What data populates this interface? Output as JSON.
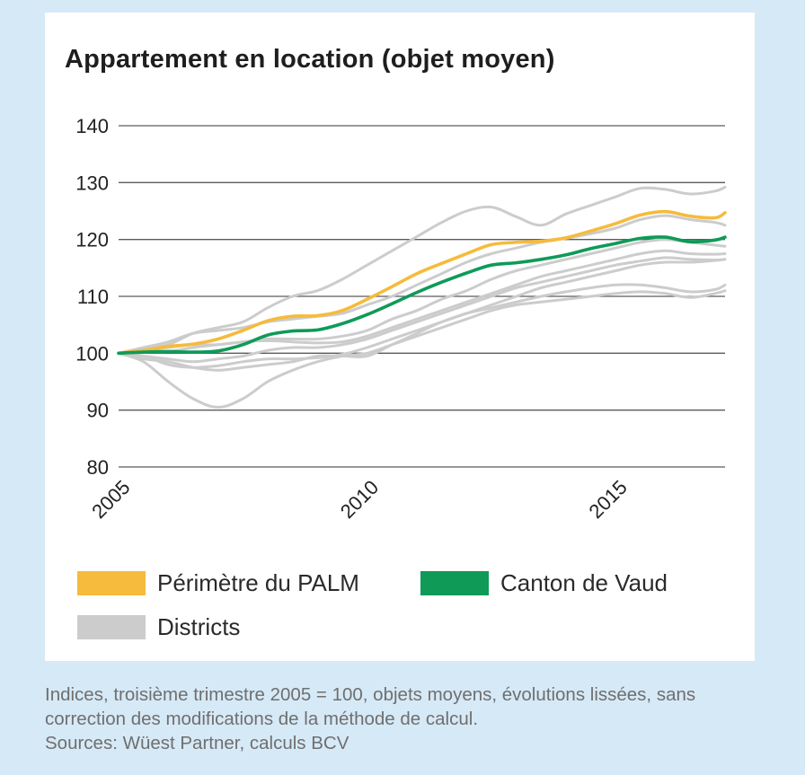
{
  "chart_data": {
    "type": "line",
    "title": "Appartement en location (objet moyen)",
    "xlabel": "",
    "ylabel": "",
    "xlim": [
      2005,
      2017.2
    ],
    "ylim": [
      80,
      140
    ],
    "yticks": [
      80,
      90,
      100,
      110,
      120,
      130,
      140
    ],
    "xticks": [
      2005,
      2010,
      2015
    ],
    "grid": "horizontal",
    "x": [
      2005.0,
      2005.5,
      2006.0,
      2006.5,
      2007.0,
      2007.5,
      2008.0,
      2008.5,
      2009.0,
      2009.5,
      2010.0,
      2010.5,
      2011.0,
      2011.5,
      2012.0,
      2012.5,
      2013.0,
      2013.5,
      2014.0,
      2014.5,
      2015.0,
      2015.5,
      2016.0,
      2016.5,
      2017.0,
      2017.2
    ],
    "series": [
      {
        "name": "Districts",
        "color": "#cccccc",
        "group": "districts",
        "values": [
          100,
          100.8,
          101.5,
          103.5,
          104.5,
          105.5,
          108,
          110,
          111,
          113,
          115.5,
          118,
          120.5,
          123,
          125,
          125.7,
          124,
          122.5,
          124.5,
          126,
          127.5,
          129,
          128.8,
          128,
          128.5,
          129.2
        ]
      },
      {
        "name": "Districts",
        "color": "#cccccc",
        "group": "districts",
        "values": [
          100,
          101,
          102,
          103.5,
          104,
          104.5,
          105.5,
          106,
          106.5,
          107,
          108.5,
          110,
          112,
          114,
          116,
          117.5,
          118.5,
          119.5,
          120.2,
          121,
          122,
          123.5,
          124.2,
          123.5,
          123,
          122.5
        ]
      },
      {
        "name": "Districts",
        "color": "#cccccc",
        "group": "districts",
        "values": [
          100,
          100.5,
          101,
          101.5,
          101.5,
          102,
          102.5,
          102.5,
          102.5,
          103,
          104,
          106,
          107.5,
          109.5,
          111,
          113,
          114.5,
          115.5,
          116.5,
          117.5,
          118.5,
          119.5,
          120,
          119.5,
          119,
          118.8
        ]
      },
      {
        "name": "Districts",
        "color": "#cccccc",
        "group": "districts",
        "values": [
          100,
          100.2,
          100.3,
          101,
          101.5,
          102,
          102.2,
          102,
          101.8,
          102,
          103,
          104.5,
          106,
          107.5,
          109,
          110.5,
          112,
          113.5,
          114.5,
          115.5,
          116.5,
          117.5,
          118,
          117.5,
          117.4,
          117.5
        ]
      },
      {
        "name": "Districts",
        "color": "#cccccc",
        "group": "districts",
        "values": [
          100,
          99.5,
          99,
          98.5,
          99,
          99.5,
          100.5,
          101,
          101,
          101.5,
          102.5,
          104,
          105.5,
          107,
          108.5,
          110,
          111.5,
          112.5,
          113.5,
          114.5,
          115.5,
          116.2,
          116.8,
          116.5,
          116.4,
          116.5
        ]
      },
      {
        "name": "Districts",
        "color": "#cccccc",
        "group": "districts",
        "values": [
          100,
          99.5,
          98,
          97.5,
          97.8,
          98.5,
          99,
          99,
          99.2,
          99.8,
          101,
          102.5,
          104,
          105.5,
          107,
          108.5,
          110,
          111.5,
          112.5,
          113.5,
          114.5,
          115.5,
          116,
          116,
          116.3,
          116.5
        ]
      },
      {
        "name": "Districts",
        "color": "#cccccc",
        "group": "districts",
        "values": [
          100,
          98.5,
          95,
          92,
          90.5,
          92,
          95,
          97,
          98.5,
          99.5,
          100,
          101.5,
          103,
          104.5,
          106,
          107.5,
          108.5,
          109,
          109.5,
          110,
          110.5,
          110.8,
          110.5,
          109.8,
          110.5,
          111
        ]
      },
      {
        "name": "Districts",
        "color": "#cccccc",
        "group": "districts",
        "values": [
          100,
          99,
          98.5,
          97.5,
          97,
          97.5,
          98,
          98.5,
          99.5,
          99.5,
          99.5,
          101.5,
          103.5,
          105.5,
          107,
          108,
          109,
          110,
          110.8,
          111.5,
          112,
          112,
          111.5,
          110.8,
          111.2,
          112
        ]
      },
      {
        "name": "Périmètre du PALM",
        "color": "#f6bb3c",
        "group": "main",
        "values": [
          100,
          100.5,
          101.2,
          101.6,
          102.5,
          104,
          105.7,
          106.5,
          106.6,
          107.5,
          109.5,
          111.7,
          114,
          115.8,
          117.5,
          119.1,
          119.5,
          119.7,
          120.3,
          121.5,
          122.8,
          124.3,
          124.9,
          124.1,
          123.8,
          124.7
        ]
      },
      {
        "name": "Canton de Vaud",
        "color": "#0f9a58",
        "group": "main",
        "values": [
          100,
          100.2,
          100.3,
          100.2,
          100.4,
          101.5,
          103.2,
          103.9,
          104.1,
          105.2,
          106.8,
          108.7,
          110.7,
          112.5,
          114.1,
          115.5,
          115.9,
          116.5,
          117.3,
          118.4,
          119.3,
          120.2,
          120.4,
          119.6,
          119.9,
          120.4
        ]
      }
    ]
  },
  "legend": {
    "items": [
      {
        "label": "Périmètre du PALM",
        "color": "#f6bb3c"
      },
      {
        "label": "Canton de Vaud",
        "color": "#0f9a58"
      },
      {
        "label": "Districts",
        "color": "#cccccc"
      }
    ]
  },
  "footnote": {
    "line1": "Indices, troisième trimestre 2005 = 100, objets moyens, évolutions lissées, sans",
    "line2": "correction des modifications de la méthode de calcul.",
    "line3": "Sources: Wüest Partner, calculs BCV"
  },
  "colors": {
    "background": "#d6e9f6",
    "panel": "#ffffff",
    "grid": "#5a5a5a"
  }
}
